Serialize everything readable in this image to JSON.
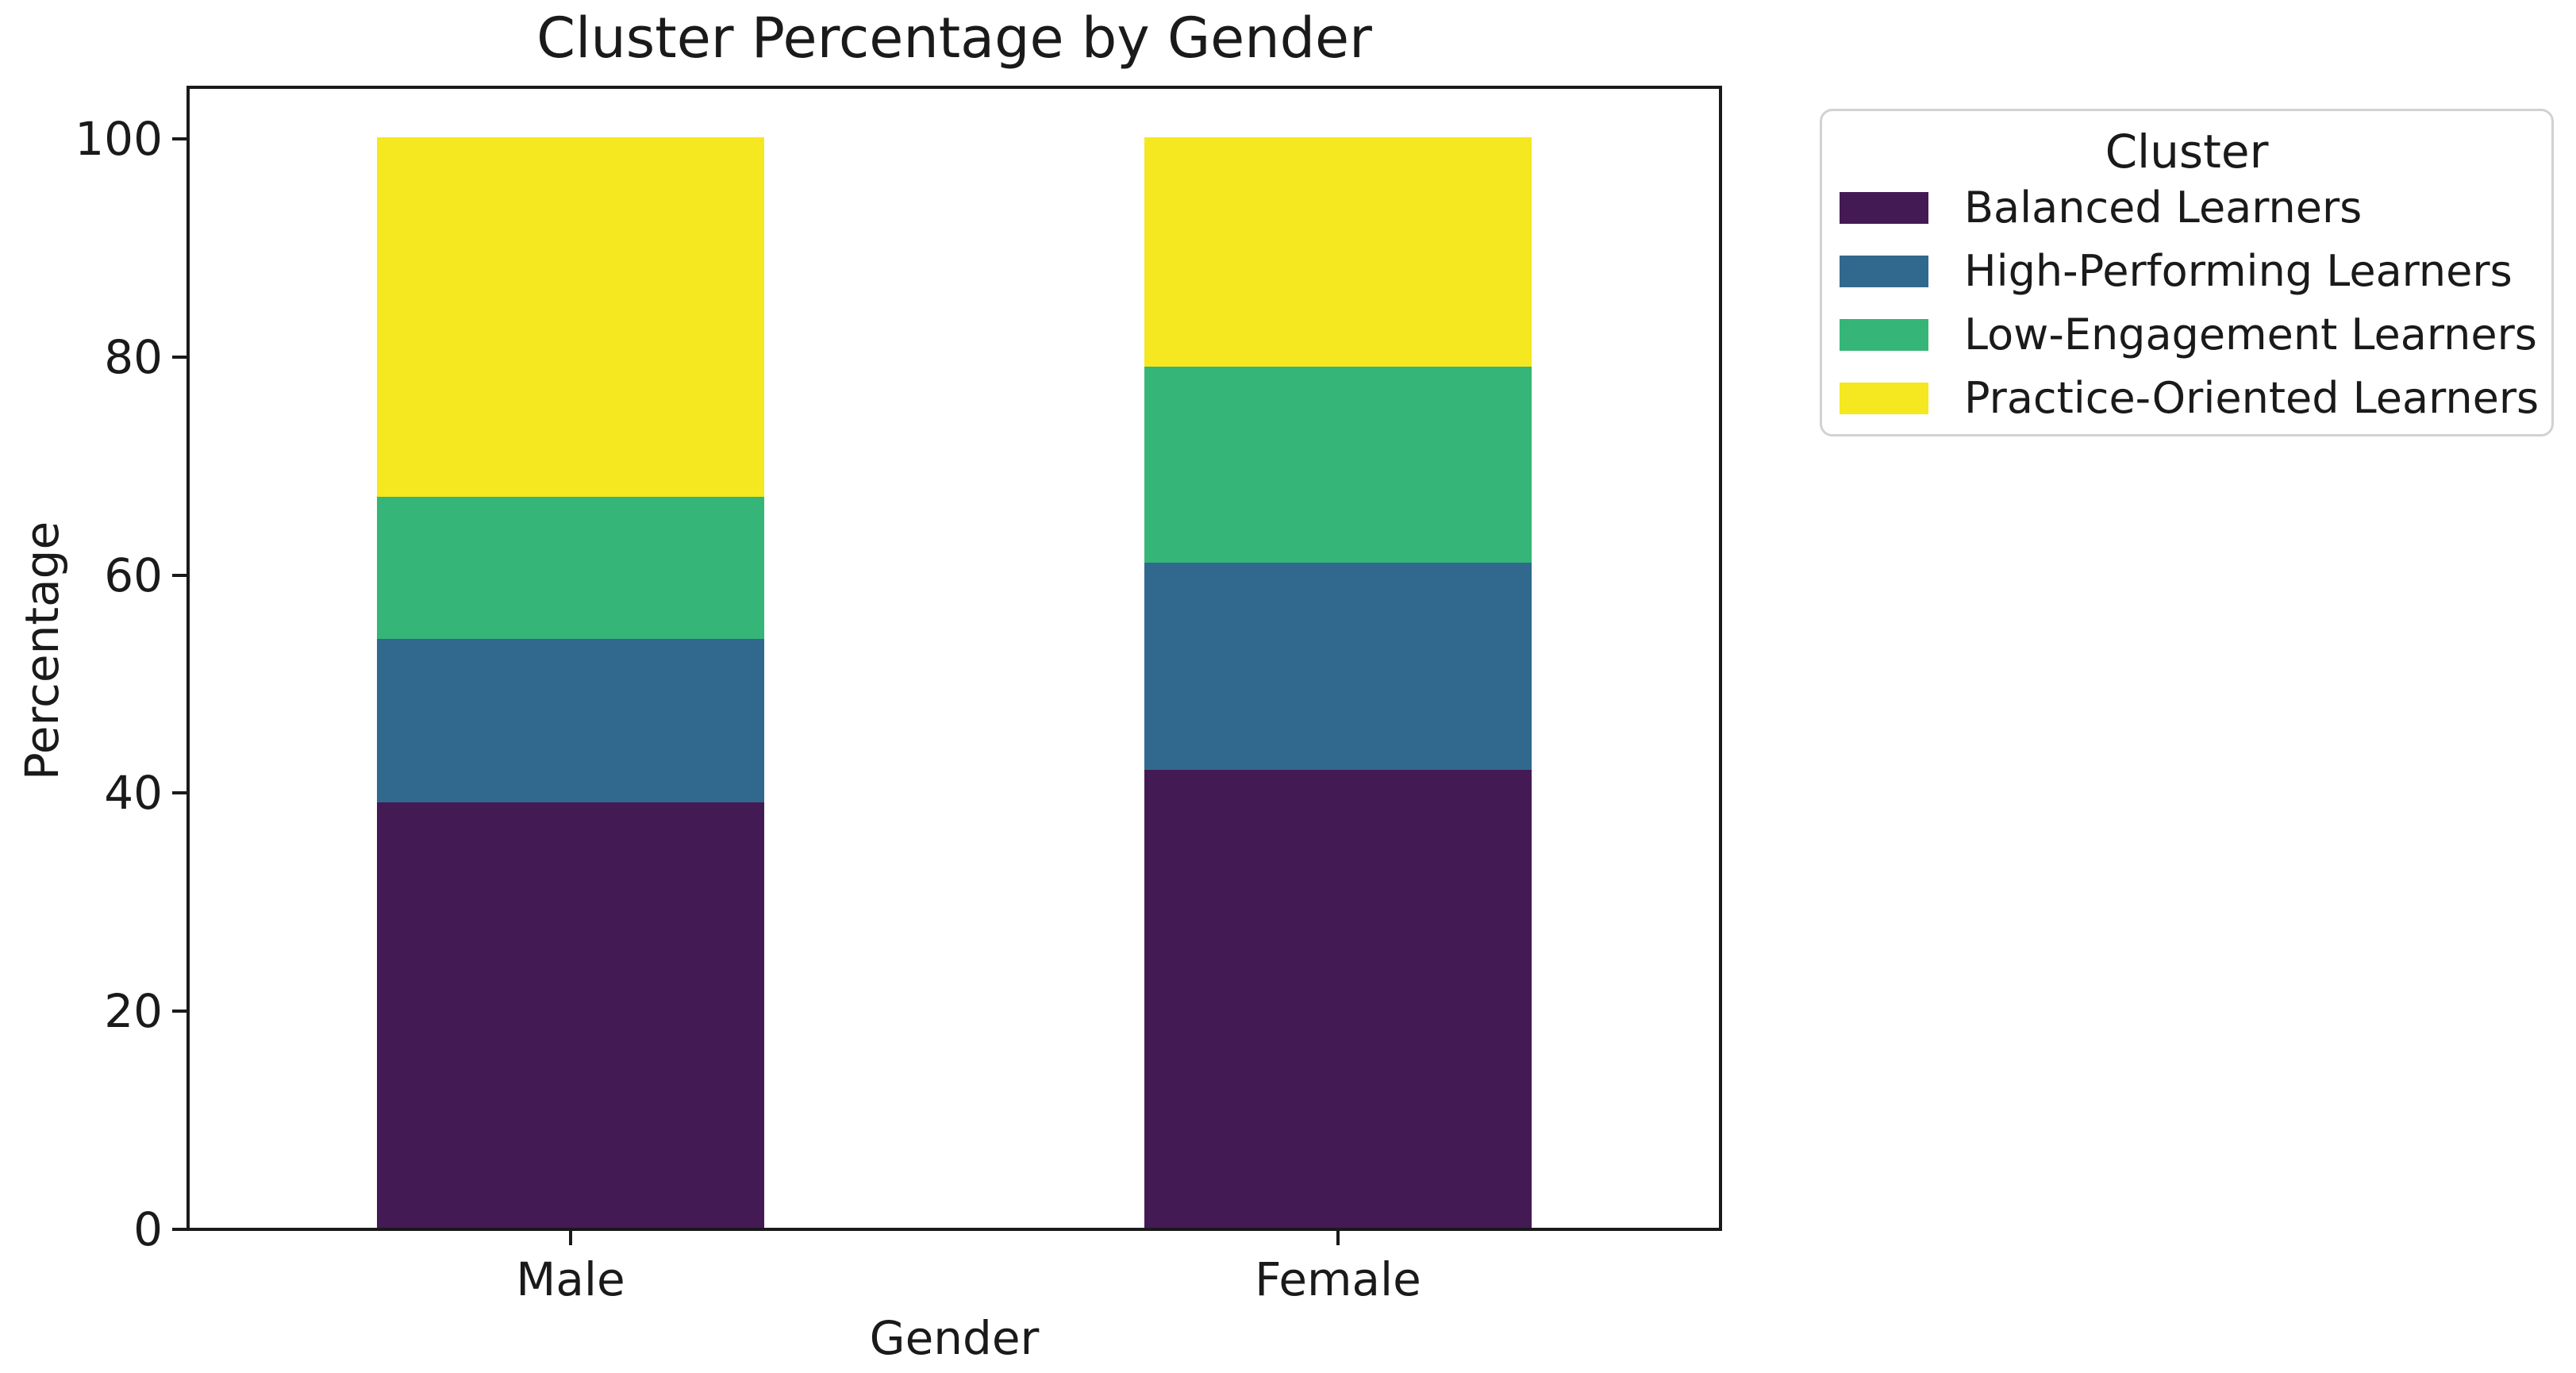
{
  "chart_data": {
    "type": "bar",
    "stacked": true,
    "title": "Cluster Percentage by Gender",
    "xlabel": "Gender",
    "ylabel": "Percentage",
    "categories": [
      "Male",
      "Female"
    ],
    "series": [
      {
        "name": "Balanced Learners",
        "color": "#441a54",
        "values": [
          39,
          42
        ]
      },
      {
        "name": "High-Performing Learners",
        "color": "#31688e",
        "values": [
          15,
          19
        ]
      },
      {
        "name": "Low-Engagement Learners",
        "color": "#35b577",
        "values": [
          13,
          18
        ]
      },
      {
        "name": "Practice-Oriented Learners",
        "color": "#f5e720",
        "values": [
          33,
          21
        ]
      }
    ],
    "yticks": [
      0,
      20,
      40,
      60,
      80,
      100
    ],
    "ylim": [
      0,
      105
    ],
    "grid": false,
    "legend": {
      "title": "Cluster",
      "position": "outside-upper-right"
    },
    "axis_color": "#1a1a1a",
    "text_color": "#1a1a1a"
  }
}
